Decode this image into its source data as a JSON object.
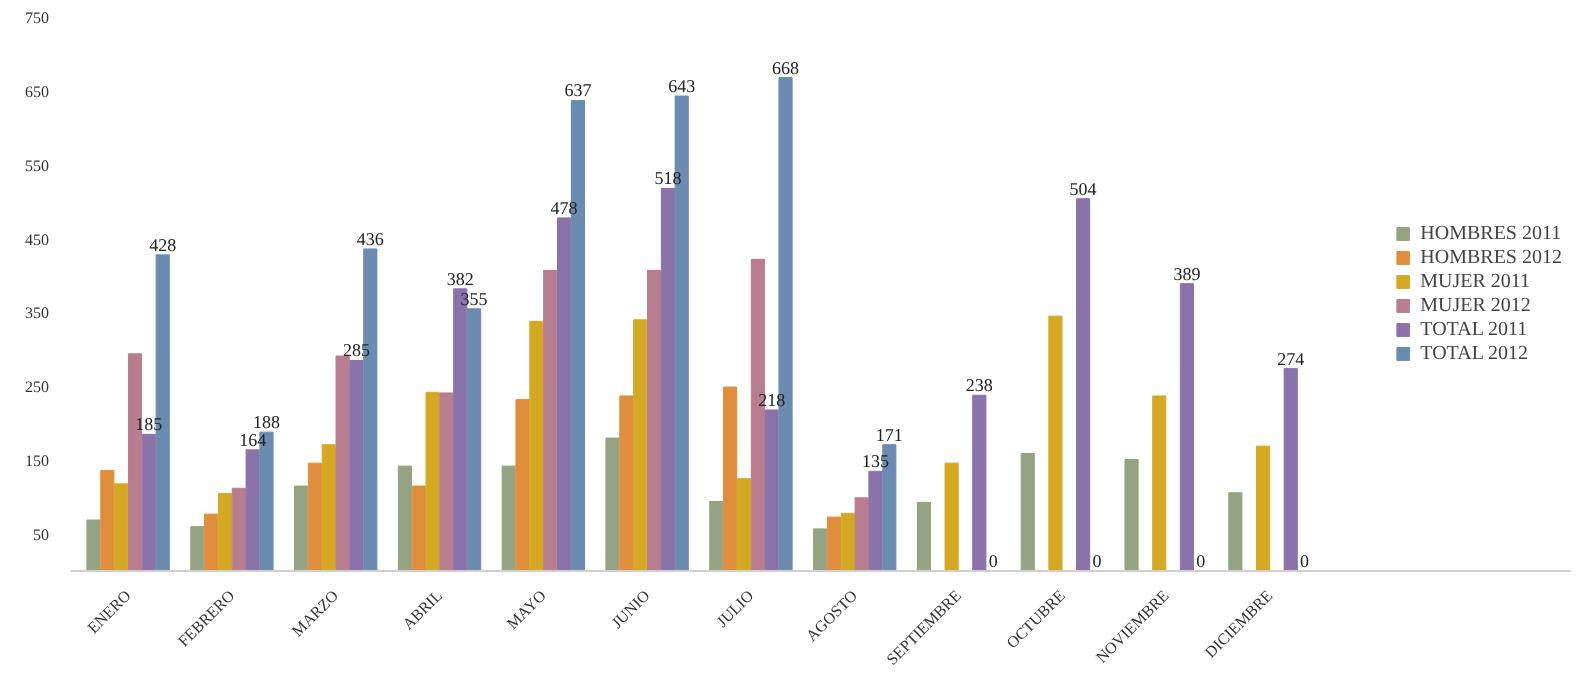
{
  "chart_data": {
    "type": "bar",
    "categories": [
      "ENERO",
      "FEBRERO",
      "MARZO",
      "ABRIL",
      "MAYO",
      "JUNIO",
      "JULIO",
      "AGOSTO",
      "SEPTIEMBRE",
      "OCTUBRE",
      "NOVIEMBRE",
      "DICIEMBRE"
    ],
    "series": [
      {
        "name": "HOMBRES 2011",
        "color": "#95a382",
        "values": [
          69,
          60,
          115,
          142,
          142,
          180,
          94,
          57,
          93,
          159,
          151,
          106
        ]
      },
      {
        "name": "HOMBRES 2012",
        "color": "#e08e3c",
        "values": [
          136,
          77,
          146,
          115,
          232,
          237,
          249,
          73,
          null,
          null,
          null,
          null
        ]
      },
      {
        "name": "MUJER 2011",
        "color": "#d4a823",
        "values": [
          118,
          105,
          171,
          242,
          338,
          340,
          125,
          78,
          146,
          345,
          237,
          169
        ]
      },
      {
        "name": "MUJER 2012",
        "color": "#b87d8e",
        "values": [
          294,
          112,
          291,
          241,
          407,
          407,
          422,
          99,
          null,
          null,
          null,
          null
        ]
      },
      {
        "name": "TOTAL 2011",
        "color": "#8a73ab",
        "values": [
          185,
          164,
          285,
          382,
          478,
          518,
          218,
          135,
          238,
          504,
          389,
          274
        ],
        "value_labels": [
          "185",
          "164",
          "285",
          "382",
          "478",
          "518",
          "218",
          "135",
          "238",
          "504",
          "389",
          "274"
        ]
      },
      {
        "name": "TOTAL 2012",
        "color": "#6b8bb0",
        "values": [
          428,
          188,
          436,
          355,
          637,
          643,
          668,
          171,
          0,
          0,
          0,
          0
        ],
        "value_labels": [
          "428",
          "188",
          "436",
          "355",
          "637",
          "643",
          "668",
          "171",
          "0",
          "0",
          "0",
          "0"
        ]
      }
    ],
    "ylim": [
      0,
      750
    ],
    "yticks": [
      50,
      150,
      250,
      350,
      450,
      550,
      650,
      750
    ],
    "grid": false,
    "legend": "right"
  }
}
